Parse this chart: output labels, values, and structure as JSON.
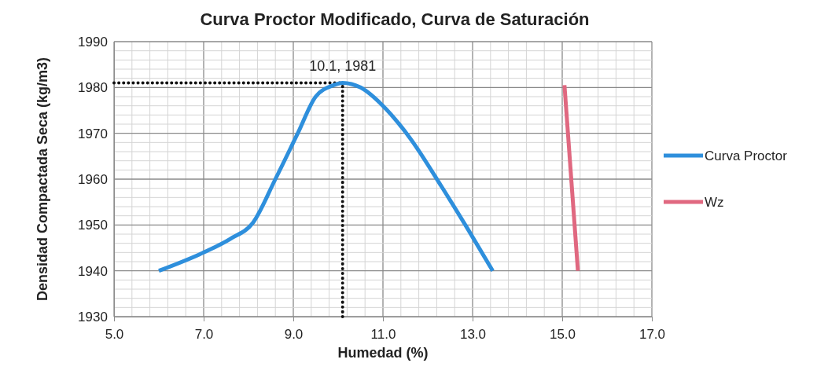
{
  "chart_data": {
    "type": "line",
    "title": "Curva Proctor Modificado, Curva de Saturación",
    "xlabel": "Humedad (%)",
    "ylabel": "Densidad Compactada Seca (kg/m3)",
    "xlim": [
      5,
      17
    ],
    "xticks": [
      {
        "value": 5,
        "label": "5.0"
      },
      {
        "value": 7,
        "label": "7.0"
      },
      {
        "value": 9,
        "label": "9.0"
      },
      {
        "value": 11,
        "label": "11.0"
      },
      {
        "value": 13,
        "label": "13.0"
      },
      {
        "value": 15,
        "label": "15.0"
      },
      {
        "value": 17,
        "label": "17.0"
      }
    ],
    "ylim": [
      1930,
      1990
    ],
    "yticks": [
      1930,
      1940,
      1950,
      1960,
      1970,
      1980,
      1990
    ],
    "grid": true,
    "legend": "right",
    "marker": "none",
    "line_style": "solid",
    "series": [
      {
        "name": "Curva Proctor",
        "color": "#2e8fdc",
        "x": [
          6.0,
          7.0,
          7.6,
          8.1,
          8.6,
          9.1,
          9.5,
          9.9,
          10.1,
          10.5,
          11.0,
          11.6,
          12.3,
          12.9,
          13.45
        ],
        "values": [
          1940,
          1944,
          1947,
          1950.5,
          1960,
          1970,
          1978,
          1980.5,
          1981,
          1980,
          1976,
          1969,
          1958.5,
          1949,
          1940
        ]
      },
      {
        "name": "Wz",
        "color": "#e06880",
        "x": [
          15.05,
          15.35
        ],
        "values": [
          1980.5,
          1940
        ]
      }
    ],
    "ref_lines": [
      {
        "axis": "y",
        "value": 1981,
        "color": "#111111",
        "line_style": "dotted"
      },
      {
        "axis": "x",
        "value": 10.1,
        "color": "#111111",
        "line_style": "dotted"
      }
    ],
    "annotations": [
      {
        "text": "10.1, 1981",
        "x": 10.1,
        "y": 1981
      }
    ]
  }
}
